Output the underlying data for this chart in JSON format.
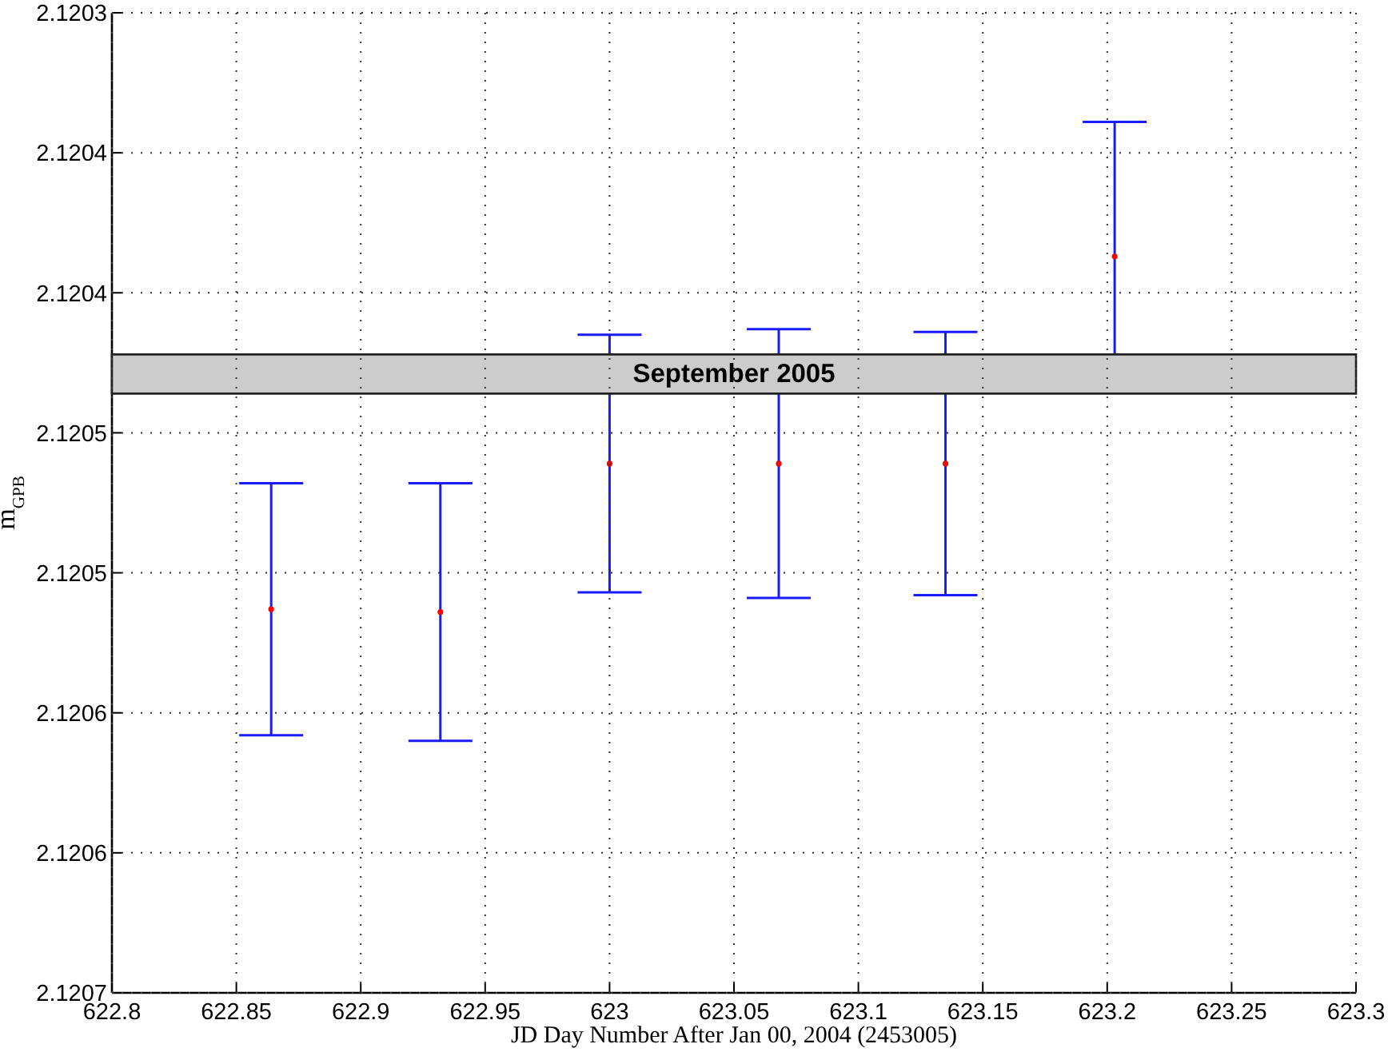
{
  "chart_data": {
    "type": "scatter",
    "xlabel": "JD Day Number After Jan 00, 2004 (2453005)",
    "ylabel": "m$_{GPB}$",
    "x": [
      622.864,
      622.932,
      623,
      623.068,
      623.135,
      623.203
    ],
    "series": [
      {
        "color": "#ff0000",
        "values": [
          2.120513,
          2.120514,
          2.120461,
          2.120461,
          2.120461,
          2.120387
        ],
        "errors": [
          4.5e-05,
          4.6e-05,
          4.6e-05,
          4.8e-05,
          4.7e-05,
          4.8e-05
        ]
      }
    ],
    "marker": "circle",
    "grid": true,
    "xlim": [
      622.8,
      623.3
    ],
    "xticks": [
      622.8,
      622.85,
      622.9,
      622.95,
      623,
      623.05,
      623.1,
      623.15,
      623.2,
      623.25,
      623.3
    ],
    "ylim": [
      2.12065,
      2.1203
    ],
    "yticks": [
      2.1203,
      {
        "value": 2.12035,
        "label": "2.1204"
      },
      2.1204,
      {
        "value": 2.12045,
        "label": "2.1205"
      },
      2.1205,
      {
        "value": 2.12055,
        "label": "2.1206"
      },
      2.1206,
      {
        "value": 2.12065,
        "label": "2.1207"
      }
    ],
    "bands": [
      {
        "axis": "y",
        "from": 2.120422,
        "to": 2.120436,
        "label": "September 2005",
        "color": "#cccccc"
      }
    ]
  }
}
